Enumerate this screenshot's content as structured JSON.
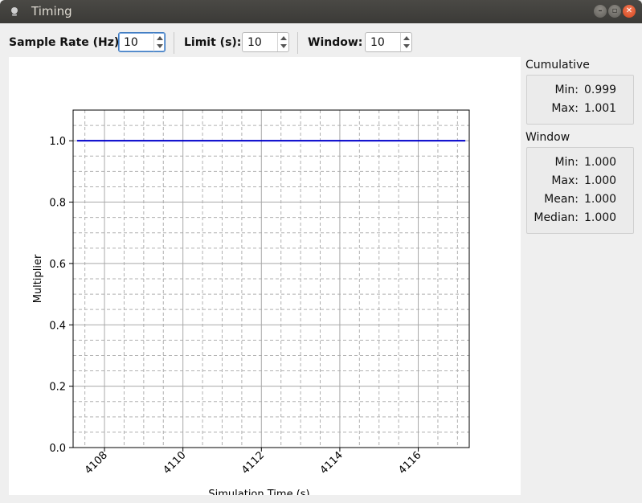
{
  "window": {
    "title": "Timing"
  },
  "toolbar": {
    "sample_rate_label": "Sample Rate (Hz):",
    "sample_rate_value": "10",
    "limit_label": "Limit (s):",
    "limit_value": "10",
    "window_label": "Window:",
    "window_value": "10"
  },
  "cumulative": {
    "title": "Cumulative",
    "min_label": "Min:",
    "min_value": "0.999",
    "max_label": "Max:",
    "max_value": "1.001"
  },
  "window_stats": {
    "title": "Window",
    "min_label": "Min:",
    "min_value": "1.000",
    "max_label": "Max:",
    "max_value": "1.000",
    "mean_label": "Mean:",
    "mean_value": "1.000",
    "median_label": "Median:",
    "median_value": "1.000"
  },
  "chart_data": {
    "type": "line",
    "title": "",
    "xlabel": "Simulation Time (s)",
    "ylabel": "Multiplier",
    "xlim": [
      4107.2,
      4117.3
    ],
    "ylim": [
      0.0,
      1.1
    ],
    "x_ticks": [
      4108,
      4110,
      4112,
      4114,
      4116
    ],
    "y_ticks": [
      0.0,
      0.2,
      0.4,
      0.6,
      0.8,
      1.0
    ],
    "grid": true,
    "series": [
      {
        "color": "#0000cc",
        "x": [
          4107.3,
          4117.2
        ],
        "y": [
          1.0,
          1.0
        ]
      }
    ]
  }
}
